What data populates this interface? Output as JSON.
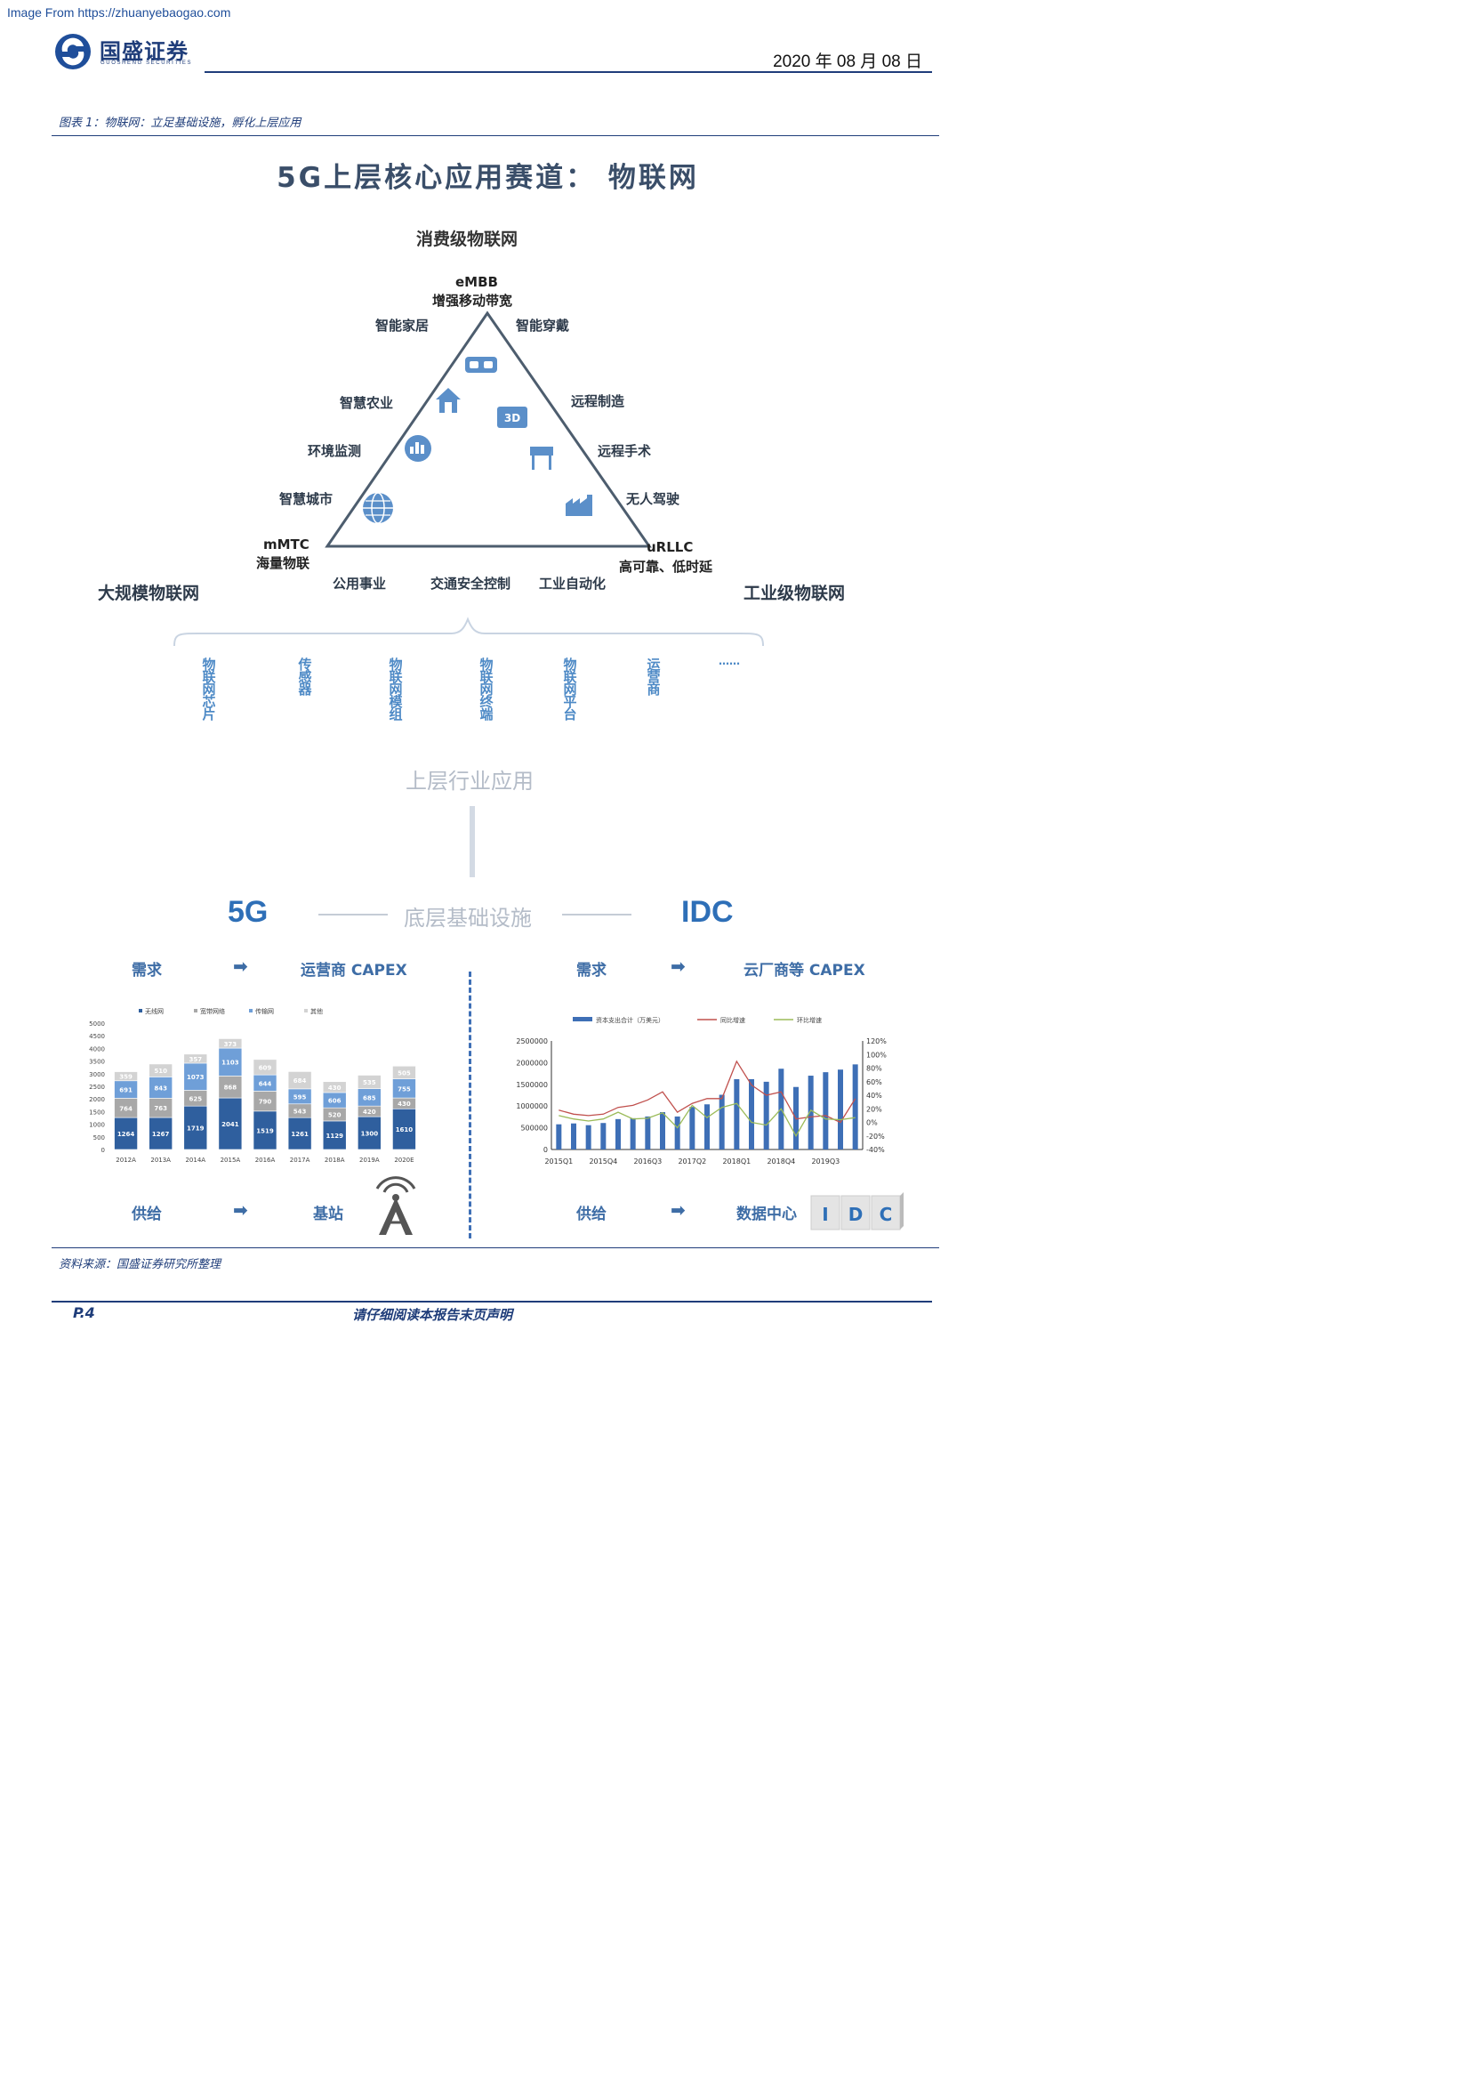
{
  "header": {
    "source_note": "Image From https://zhuanyebaogao.com",
    "brand_cn": "国盛证券",
    "brand_en": "GUOSHENG SECURITIES",
    "date": "2020 年 08 月 08 日"
  },
  "caption": "图表 1：物联网：立足基础设施，孵化上层应用",
  "figure": {
    "title": "5G上层核心应用赛道：  物联网",
    "consumer_iot": "消费级物联网",
    "embb_1": "eMBB",
    "embb_2": "增强移动带宽",
    "mmtc_1": "mMTC",
    "mmtc_2": "海量物联",
    "urllc_1": "uRLLC",
    "urllc_2": "高可靠、低时延",
    "left_apps": [
      "智能家居",
      "智慧农业",
      "环境监测",
      "智慧城市"
    ],
    "right_apps": [
      "智能穿戴",
      "远程制造",
      "远程手术",
      "无人驾驶"
    ],
    "bottom_apps": [
      "公用事业",
      "交通安全控制",
      "工业自动化"
    ],
    "massive_iot": "大规模物联网",
    "industrial_iot": "工业级物联网",
    "chain": [
      "物联网芯片",
      "传感器",
      "物联网模组",
      "物联网终端",
      "物联网平台",
      "运营商",
      "……"
    ],
    "upper_apps": "上层行业应用",
    "fiveg": "5G",
    "base_infra": "底层基础设施",
    "idc": "IDC",
    "left_demand": "需求",
    "left_capex": "运营商 CAPEX",
    "right_demand": "需求",
    "right_capex": "云厂商等 CAPEX",
    "left_supply": "供给",
    "left_station": "基站",
    "right_supply": "供给",
    "right_dc": "数据中心",
    "idc_box": [
      "I",
      "D",
      "C"
    ],
    "arrow": "➡"
  },
  "chart_data": [
    {
      "type": "bar",
      "stacked": true,
      "categories": [
        "2012A",
        "2013A",
        "2014A",
        "2015A",
        "2016A",
        "2017A",
        "2018A",
        "2019A",
        "2020E"
      ],
      "series": [
        {
          "name": "无线网",
          "values": [
            1264,
            1267,
            1719,
            2041,
            1519,
            1261,
            1129,
            1300,
            1610
          ],
          "color": "#2f5f9e"
        },
        {
          "name": "宽带网络",
          "values": [
            764,
            763,
            625,
            868,
            790,
            543,
            520,
            420,
            430
          ],
          "color": "#a8a8a8"
        },
        {
          "name": "传输网",
          "values": [
            691,
            843,
            1073,
            1103,
            644,
            595,
            606,
            685,
            755
          ],
          "color": "#6f9fd8"
        },
        {
          "name": "其他",
          "values": [
            359,
            510,
            357,
            373,
            609,
            684,
            430,
            535,
            505
          ],
          "color": "#d3d3d3"
        }
      ],
      "yticks": [
        "0",
        "500",
        "1000",
        "1500",
        "2000",
        "2500",
        "3000",
        "3500",
        "4000",
        "4500",
        "5000"
      ],
      "ylim": [
        0,
        5000
      ]
    },
    {
      "type": "bar+line",
      "categories": [
        "2015Q1",
        "2015Q2",
        "2015Q3",
        "2015Q4",
        "2016Q1",
        "2016Q2",
        "2016Q3",
        "2016Q4",
        "2017Q1",
        "2017Q2",
        "2017Q3",
        "2017Q4",
        "2018Q1",
        "2018Q2",
        "2018Q3",
        "2018Q4",
        "2019Q1",
        "2019Q2",
        "2019Q3",
        "2019Q4",
        "2020Q1"
      ],
      "xticks": [
        "2015Q1",
        "2015Q4",
        "2016Q3",
        "2017Q2",
        "2018Q1",
        "2018Q4",
        "2019Q3"
      ],
      "series": [
        {
          "name": "资本支出合计（万美元）",
          "values": [
            580000,
            600000,
            560000,
            610000,
            700000,
            720000,
            760000,
            860000,
            760000,
            980000,
            1040000,
            1260000,
            1620000,
            1620000,
            1560000,
            1860000,
            1440000,
            1700000,
            1780000,
            1840000,
            1960000
          ],
          "color": "#3e6fb6"
        },
        {
          "name": "同比增速",
          "values": [
            18,
            12,
            10,
            12,
            22,
            25,
            33,
            45,
            15,
            28,
            35,
            35,
            90,
            55,
            40,
            45,
            5,
            8,
            10,
            0,
            35
          ],
          "color": "#c0504d"
        },
        {
          "name": "环比增速",
          "values": [
            10,
            5,
            2,
            5,
            15,
            5,
            6,
            14,
            -8,
            25,
            7,
            22,
            28,
            0,
            -4,
            20,
            -20,
            18,
            5,
            4,
            7
          ],
          "color": "#9bbb59"
        }
      ],
      "y_left_ticks": [
        "0",
        "500000",
        "1000000",
        "1500000",
        "2000000",
        "2500000"
      ],
      "y_right_ticks": [
        "120%",
        "100%",
        "80%",
        "60%",
        "40%",
        "20%",
        "0%",
        "-20%",
        "-40%"
      ],
      "ylim_left": [
        0,
        2500000
      ],
      "ylim_right": [
        -40,
        120
      ]
    }
  ],
  "source": "资料来源：国盛证券研究所整理",
  "footer": {
    "page": "P.4",
    "disclaimer": "请仔细阅读本报告末页声明"
  }
}
